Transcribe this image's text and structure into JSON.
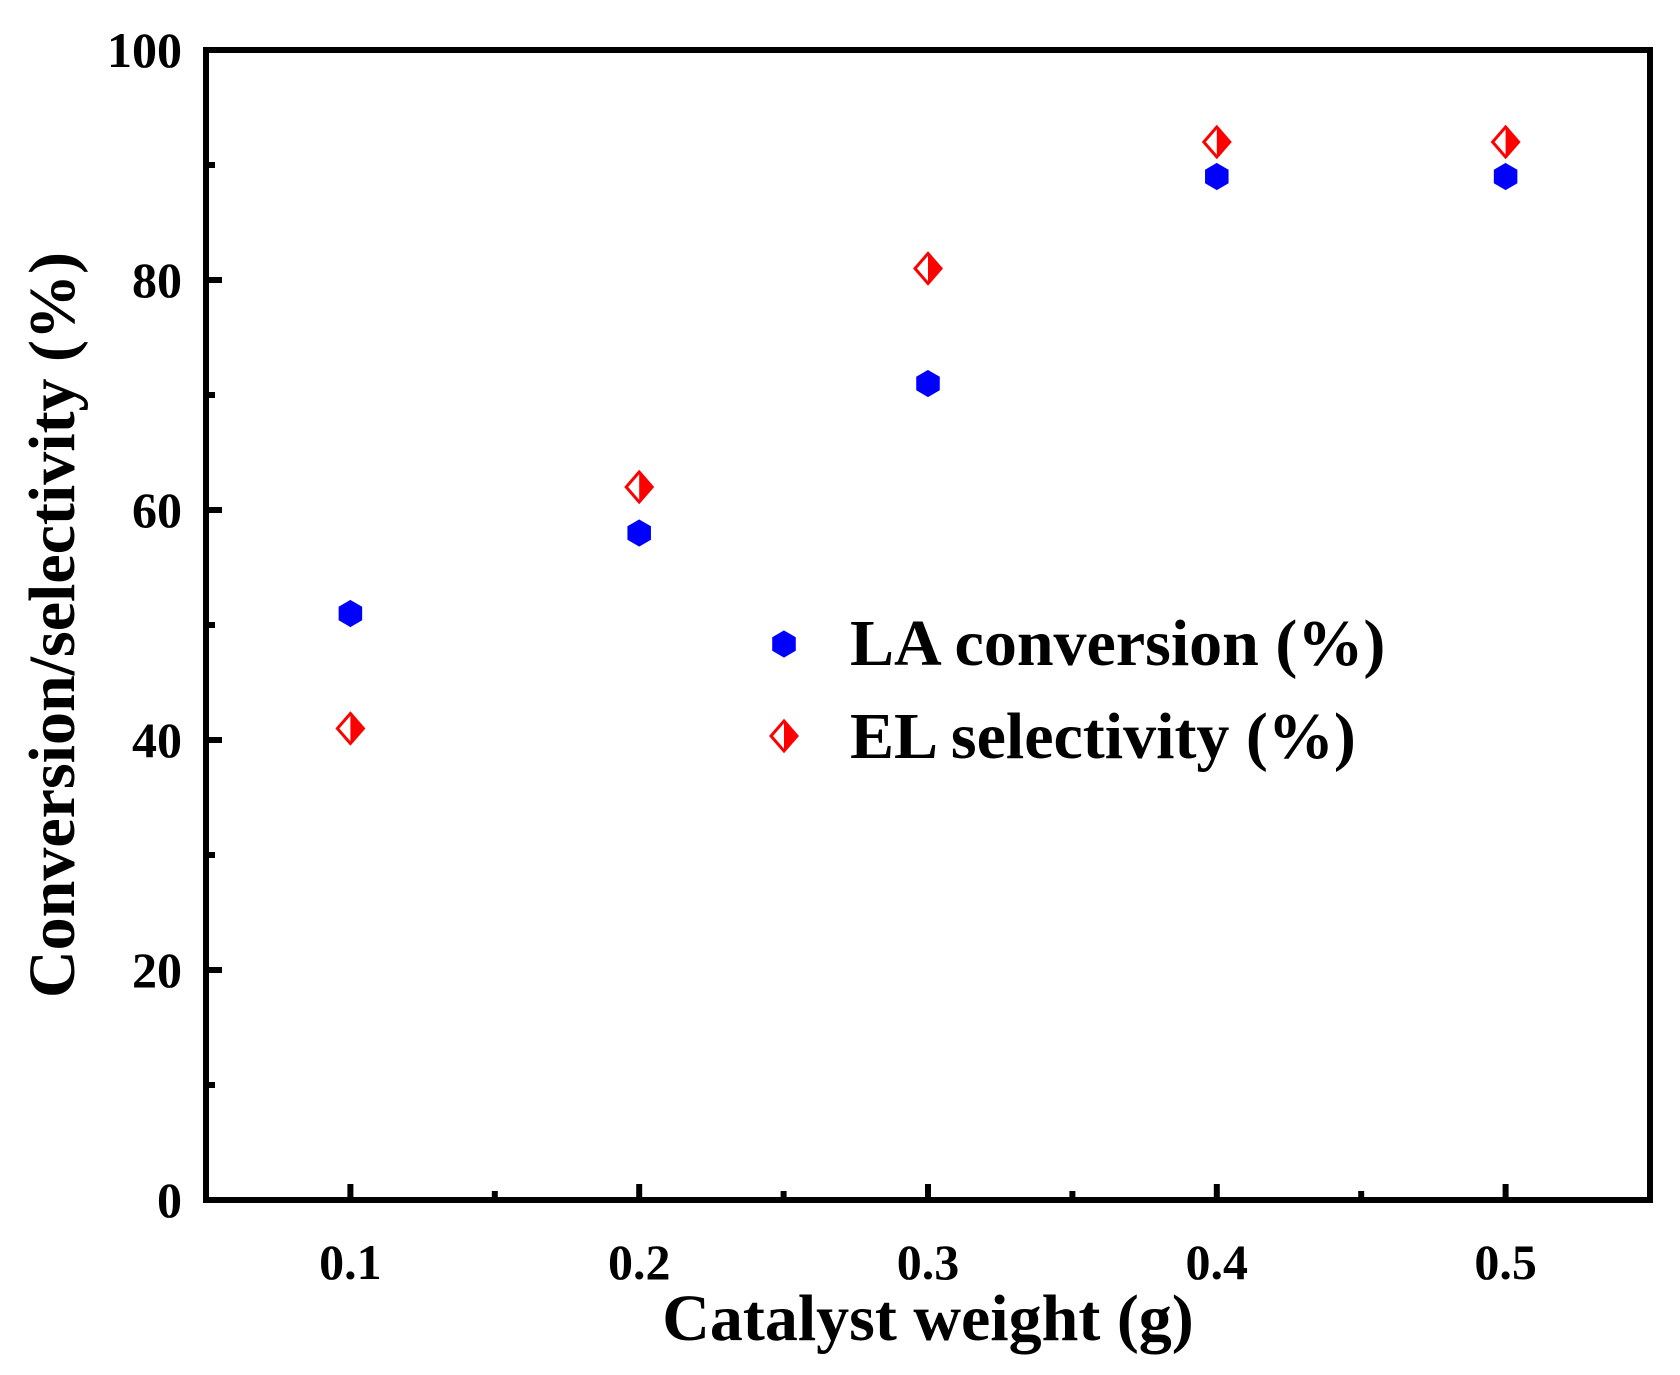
{
  "chart_data": {
    "type": "scatter",
    "title": "",
    "xlabel": "Catalyst weight (g)",
    "ylabel": "Conversion/selectivity (%)",
    "xlim": [
      0.05,
      0.55
    ],
    "ylim": [
      0,
      100
    ],
    "xticks": [
      0.1,
      0.2,
      0.3,
      0.4,
      0.5
    ],
    "xtick_labels": [
      "0.1",
      "0.2",
      "0.3",
      "0.4",
      "0.5"
    ],
    "xminor_ticks": [
      0.15,
      0.25,
      0.35,
      0.45
    ],
    "yticks": [
      0,
      20,
      40,
      60,
      80,
      100
    ],
    "ytick_labels": [
      "0",
      "20",
      "40",
      "60",
      "80",
      "100"
    ],
    "yminor_ticks": [
      10,
      30,
      50,
      70,
      90
    ],
    "grid": false,
    "legend_position": "center-right",
    "series": [
      {
        "name": "LA conversion (%)",
        "marker": "hexagon",
        "color": "#0000ff",
        "x": [
          0.1,
          0.2,
          0.3,
          0.4,
          0.5
        ],
        "y": [
          51,
          58,
          71,
          89,
          89
        ]
      },
      {
        "name": "EL selectivity (%)",
        "marker": "half-filled-diamond",
        "color": "#ff0000",
        "x": [
          0.1,
          0.2,
          0.3,
          0.4,
          0.5
        ],
        "y": [
          41,
          62,
          81,
          92,
          92
        ]
      }
    ]
  }
}
